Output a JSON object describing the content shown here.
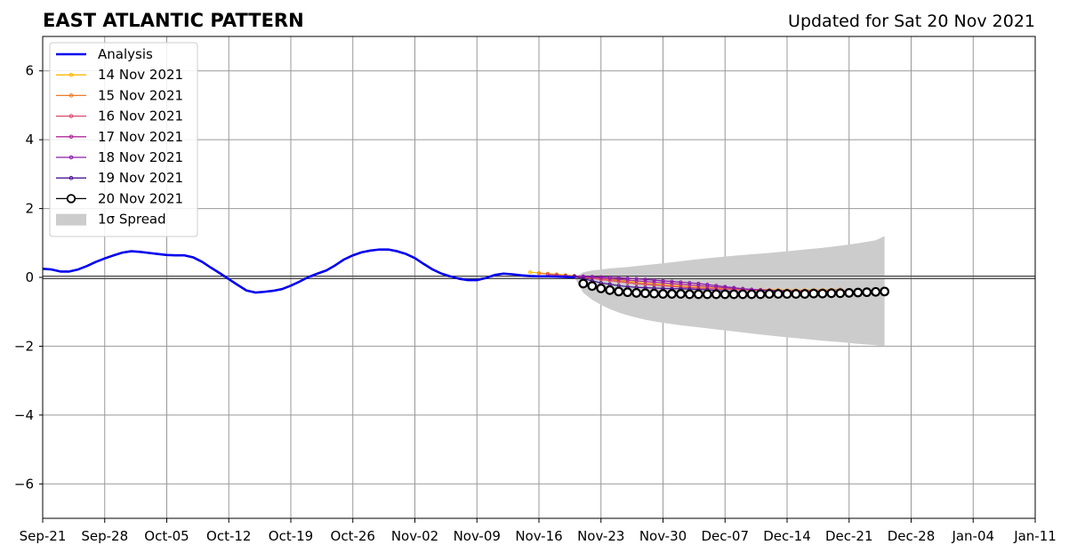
{
  "chart_data": {
    "type": "line",
    "title": "EAST ATLANTIC PATTERN",
    "subtitle": "Updated for Sat 20 Nov 2021",
    "xlim": [
      "2021-09-21",
      "2022-01-11"
    ],
    "ylim": [
      -7,
      7
    ],
    "x_ticks": [
      "2021-09-21",
      "2021-09-28",
      "2021-10-05",
      "2021-10-12",
      "2021-10-19",
      "2021-10-26",
      "2021-11-02",
      "2021-11-09",
      "2021-11-16",
      "2021-11-23",
      "2021-11-30",
      "2021-12-07",
      "2021-12-14",
      "2021-12-21",
      "2021-12-28",
      "2022-01-04",
      "2022-01-11"
    ],
    "x_tick_labels": [
      "Sep-21",
      "Sep-28",
      "Oct-05",
      "Oct-12",
      "Oct-19",
      "Oct-26",
      "Nov-02",
      "Nov-09",
      "Nov-16",
      "Nov-23",
      "Nov-30",
      "Dec-07",
      "Dec-14",
      "Dec-21",
      "Dec-28",
      "Jan-04",
      "Jan-11"
    ],
    "y_ticks": [
      -6,
      -4,
      -2,
      0,
      2,
      4,
      6
    ],
    "y_tick_labels": [
      "−6",
      "−4",
      "−2",
      "0",
      "2",
      "4",
      "6"
    ],
    "grid": true,
    "legend_placement": "top-left",
    "analysis": {
      "name": "Analysis",
      "color": "#0000ee",
      "x": [
        "2021-09-21",
        "2021-09-22",
        "2021-09-23",
        "2021-09-24",
        "2021-09-25",
        "2021-09-26",
        "2021-09-27",
        "2021-09-28",
        "2021-09-29",
        "2021-09-30",
        "2021-10-01",
        "2021-10-02",
        "2021-10-03",
        "2021-10-04",
        "2021-10-05",
        "2021-10-06",
        "2021-10-07",
        "2021-10-08",
        "2021-10-09",
        "2021-10-10",
        "2021-10-11",
        "2021-10-12",
        "2021-10-13",
        "2021-10-14",
        "2021-10-15",
        "2021-10-16",
        "2021-10-17",
        "2021-10-18",
        "2021-10-19",
        "2021-10-20",
        "2021-10-21",
        "2021-10-22",
        "2021-10-23",
        "2021-10-24",
        "2021-10-25",
        "2021-10-26",
        "2021-10-27",
        "2021-10-28",
        "2021-10-29",
        "2021-10-30",
        "2021-10-31",
        "2021-11-01",
        "2021-11-02",
        "2021-11-03",
        "2021-11-04",
        "2021-11-05",
        "2021-11-06",
        "2021-11-07",
        "2021-11-08",
        "2021-11-09",
        "2021-11-10",
        "2021-11-11",
        "2021-11-12",
        "2021-11-13",
        "2021-11-14",
        "2021-11-15",
        "2021-11-16",
        "2021-11-17",
        "2021-11-18",
        "2021-11-19",
        "2021-11-20"
      ],
      "y": [
        0.25,
        0.23,
        0.17,
        0.17,
        0.23,
        0.33,
        0.45,
        0.55,
        0.64,
        0.72,
        0.76,
        0.74,
        0.71,
        0.68,
        0.65,
        0.64,
        0.64,
        0.58,
        0.45,
        0.28,
        0.12,
        -0.05,
        -0.22,
        -0.38,
        -0.44,
        -0.42,
        -0.39,
        -0.34,
        -0.24,
        -0.12,
        0.01,
        0.11,
        0.2,
        0.35,
        0.52,
        0.64,
        0.73,
        0.78,
        0.81,
        0.81,
        0.76,
        0.68,
        0.56,
        0.39,
        0.23,
        0.11,
        0.03,
        -0.04,
        -0.08,
        -0.08,
        -0.02,
        0.07,
        0.11,
        0.09,
        0.06,
        0.04,
        0.03,
        0.03,
        0.02,
        0.01,
        0.0
      ]
    },
    "forecasts": [
      {
        "name": "14 Nov 2021",
        "color": "#ffb400",
        "start": "2021-11-15",
        "y": [
          0.15,
          0.13,
          0.11,
          0.09,
          0.07,
          0.05,
          0.02,
          0.0,
          -0.03,
          -0.06,
          -0.09,
          -0.12,
          -0.14,
          -0.17,
          -0.19,
          -0.21,
          -0.23,
          -0.25,
          -0.27,
          -0.28,
          -0.3,
          -0.31,
          -0.32,
          -0.33,
          -0.34,
          -0.35,
          -0.35,
          -0.36,
          -0.36,
          -0.37,
          -0.37,
          -0.37,
          -0.37,
          -0.36,
          -0.36
        ]
      },
      {
        "name": "15 Nov 2021",
        "color": "#ee7a2a",
        "start": "2021-11-16",
        "y": [
          0.12,
          0.1,
          0.08,
          0.05,
          0.02,
          0.0,
          -0.03,
          -0.06,
          -0.09,
          -0.12,
          -0.15,
          -0.18,
          -0.2,
          -0.22,
          -0.24,
          -0.26,
          -0.28,
          -0.29,
          -0.31,
          -0.32,
          -0.33,
          -0.34,
          -0.35,
          -0.36,
          -0.36,
          -0.37,
          -0.37,
          -0.38,
          -0.38,
          -0.38,
          -0.38,
          -0.37,
          -0.37,
          -0.36,
          -0.35
        ]
      },
      {
        "name": "16 Nov 2021",
        "color": "#d84a6e",
        "start": "2021-11-17",
        "y": [
          0.08,
          0.06,
          0.04,
          0.02,
          0.0,
          -0.03,
          -0.06,
          -0.09,
          -0.12,
          -0.15,
          -0.18,
          -0.2,
          -0.22,
          -0.24,
          -0.26,
          -0.28,
          -0.3,
          -0.31,
          -0.32,
          -0.34,
          -0.35,
          -0.36,
          -0.37,
          -0.37,
          -0.38,
          -0.39,
          -0.39,
          -0.4,
          -0.4,
          -0.4,
          -0.4,
          -0.4,
          -0.4,
          -0.39,
          -0.39
        ]
      },
      {
        "name": "17 Nov 2021",
        "color": "#b0289a",
        "start": "2021-11-18",
        "y": [
          0.05,
          0.04,
          0.03,
          0.02,
          0.0,
          -0.02,
          -0.04,
          -0.06,
          -0.08,
          -0.1,
          -0.12,
          -0.14,
          -0.16,
          -0.18,
          -0.2,
          -0.22,
          -0.24,
          -0.26,
          -0.28,
          -0.3,
          -0.32,
          -0.33,
          -0.35,
          -0.36,
          -0.37,
          -0.38,
          -0.39,
          -0.4,
          -0.41,
          -0.42,
          -0.42,
          -0.43,
          -0.43,
          -0.43,
          -0.43
        ]
      },
      {
        "name": "18 Nov 2021",
        "color": "#8a1aa8",
        "start": "2021-11-19",
        "y": [
          0.04,
          0.04,
          0.03,
          0.02,
          0.01,
          0.0,
          -0.01,
          -0.03,
          -0.04,
          -0.06,
          -0.08,
          -0.1,
          -0.12,
          -0.14,
          -0.16,
          -0.18,
          -0.21,
          -0.24,
          -0.27,
          -0.3,
          -0.33,
          -0.35,
          -0.37,
          -0.39,
          -0.41,
          -0.42,
          -0.43,
          -0.44,
          -0.45,
          -0.45,
          -0.46,
          -0.46,
          -0.46,
          -0.46,
          -0.46
        ]
      },
      {
        "name": "19 Nov 2021",
        "color": "#4a1290",
        "start": "2021-11-20",
        "y": [
          0.02,
          -0.04,
          -0.1,
          -0.16,
          -0.2,
          -0.24,
          -0.27,
          -0.29,
          -0.3,
          -0.31,
          -0.32,
          -0.33,
          -0.33,
          -0.34,
          -0.35,
          -0.36,
          -0.38,
          -0.4,
          -0.42,
          -0.44,
          -0.46,
          -0.47,
          -0.48,
          -0.49,
          -0.49,
          -0.5,
          -0.5,
          -0.5,
          -0.5,
          -0.5,
          -0.49,
          -0.48,
          -0.47,
          -0.46,
          -0.44
        ]
      },
      {
        "name": "20 Nov 2021",
        "color": "#000000",
        "start": "2021-11-21",
        "y": [
          -0.18,
          -0.25,
          -0.32,
          -0.37,
          -0.41,
          -0.43,
          -0.45,
          -0.46,
          -0.47,
          -0.48,
          -0.48,
          -0.48,
          -0.49,
          -0.49,
          -0.49,
          -0.49,
          -0.49,
          -0.49,
          -0.49,
          -0.49,
          -0.49,
          -0.48,
          -0.48,
          -0.48,
          -0.48,
          -0.48,
          -0.47,
          -0.47,
          -0.46,
          -0.46,
          -0.45,
          -0.44,
          -0.43,
          -0.42,
          -0.41
        ]
      }
    ],
    "spread": {
      "name": "1σ Spread",
      "color": "#cccccc",
      "x": [
        "2021-11-20",
        "2021-11-21",
        "2021-11-22",
        "2021-11-23",
        "2021-11-24",
        "2021-11-25",
        "2021-11-26",
        "2021-11-27",
        "2021-11-28",
        "2021-11-29",
        "2021-11-30",
        "2021-12-02",
        "2021-12-04",
        "2021-12-06",
        "2021-12-08",
        "2021-12-10",
        "2021-12-12",
        "2021-12-14",
        "2021-12-16",
        "2021-12-18",
        "2021-12-20",
        "2021-12-22",
        "2021-12-24",
        "2021-12-25"
      ],
      "upper": [
        0.0,
        0.15,
        0.2,
        0.23,
        0.26,
        0.28,
        0.3,
        0.33,
        0.36,
        0.38,
        0.41,
        0.47,
        0.53,
        0.58,
        0.63,
        0.67,
        0.71,
        0.76,
        0.81,
        0.86,
        0.92,
        0.99,
        1.08,
        1.2
      ],
      "lower": [
        0.0,
        -0.45,
        -0.65,
        -0.8,
        -0.92,
        -1.02,
        -1.1,
        -1.17,
        -1.23,
        -1.28,
        -1.32,
        -1.39,
        -1.45,
        -1.51,
        -1.57,
        -1.63,
        -1.69,
        -1.74,
        -1.79,
        -1.84,
        -1.88,
        -1.93,
        -1.97,
        -2.0
      ]
    },
    "legend": [
      "Analysis",
      "14 Nov 2021",
      "15 Nov 2021",
      "16 Nov 2021",
      "17 Nov 2021",
      "18 Nov 2021",
      "19 Nov 2021",
      "20 Nov 2021",
      "1σ Spread"
    ]
  }
}
